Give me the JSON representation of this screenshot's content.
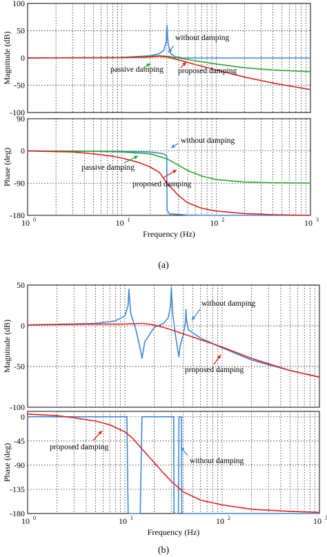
{
  "captions": [
    "(a)",
    "(b)"
  ],
  "colors": {
    "without_damping": "#3b88d6",
    "passive_damping": "#2aa52a",
    "proposed_damping": "#e0201c"
  },
  "chart_data": [
    {
      "id": "a-magnitude",
      "type": "line",
      "x_scale": "log",
      "xlim": [
        1,
        1000
      ],
      "ylabel": "Magnitude (dB)",
      "ylim": [
        -100,
        100
      ],
      "yticks": [
        100,
        50,
        0,
        -50,
        -100
      ],
      "grid": true,
      "series": [
        {
          "name": "without damping",
          "x": [
            1,
            10,
            20,
            25,
            28,
            29.5,
            30,
            31,
            33,
            37,
            45,
            60,
            100,
            200,
            1000
          ],
          "values": [
            0,
            1,
            4,
            8,
            15,
            30,
            60,
            25,
            8,
            2,
            0,
            0,
            0,
            0,
            0
          ]
        },
        {
          "name": "passive damping",
          "x": [
            1,
            10,
            20,
            25,
            30,
            40,
            60,
            100,
            200,
            400,
            1000
          ],
          "values": [
            0,
            1,
            3,
            4,
            3,
            0,
            -5,
            -11,
            -18,
            -22,
            -25
          ]
        },
        {
          "name": "proposed damping",
          "x": [
            1,
            10,
            20,
            25,
            30,
            35,
            45,
            60,
            100,
            200,
            400,
            1000
          ],
          "values": [
            0,
            0.5,
            2,
            3,
            2,
            -1,
            -6,
            -12,
            -22,
            -35,
            -46,
            -58
          ]
        }
      ],
      "annotations": [
        "without damping",
        "passive damping",
        "proposed damping"
      ]
    },
    {
      "id": "a-phase",
      "type": "line",
      "x_scale": "log",
      "xlim": [
        1,
        1000
      ],
      "xlabel": "Frequency (Hz)",
      "ylabel": "Phase (deg)",
      "ylim": [
        -180,
        90
      ],
      "yticks": [
        90,
        0,
        -90,
        -180
      ],
      "xticks": [
        {
          "base": "10",
          "exp": "0"
        },
        {
          "base": "10",
          "exp": "1"
        },
        {
          "base": "10",
          "exp": "2"
        },
        {
          "base": "10",
          "exp": "3"
        }
      ],
      "grid": true,
      "series": [
        {
          "name": "without damping",
          "x": [
            1,
            10,
            20,
            28,
            29.9,
            30.1,
            32,
            50,
            100,
            1000
          ],
          "values": [
            0,
            -1,
            -3,
            -8,
            -15,
            -165,
            -176,
            -179,
            -180,
            -180
          ]
        },
        {
          "name": "passive damping",
          "x": [
            1,
            5,
            10,
            20,
            30,
            40,
            50,
            70,
            100,
            200,
            400,
            1000
          ],
          "values": [
            0,
            -1,
            -3,
            -8,
            -22,
            -40,
            -55,
            -70,
            -80,
            -87,
            -89,
            -90
          ]
        },
        {
          "name": "proposed damping",
          "x": [
            1,
            3,
            5,
            8,
            10,
            15,
            20,
            25,
            30,
            40,
            50,
            70,
            100,
            200,
            400,
            1000
          ],
          "values": [
            0,
            -3,
            -8,
            -15,
            -20,
            -32,
            -45,
            -60,
            -90,
            -125,
            -145,
            -160,
            -168,
            -175,
            -178,
            -180
          ]
        }
      ],
      "annotations": [
        "without damping",
        "passive damping",
        "proposed damping"
      ]
    },
    {
      "id": "b-magnitude",
      "type": "line",
      "x_scale": "log",
      "xlim": [
        1,
        1000
      ],
      "ylabel": "Magnitude (dB)",
      "ylim": [
        -100,
        50
      ],
      "yticks": [
        50,
        0,
        -50,
        -100
      ],
      "grid": true,
      "series": [
        {
          "name": "without damping",
          "x": [
            1,
            5,
            8,
            10,
            10.8,
            11,
            11.5,
            13,
            14.5,
            15,
            16,
            20,
            25,
            28,
            29.5,
            30,
            31,
            33,
            35,
            36,
            37,
            40,
            42,
            42.5,
            43,
            45,
            60,
            100,
            200,
            500,
            1000
          ],
          "values": [
            1,
            3,
            6,
            12,
            25,
            45,
            15,
            -5,
            -30,
            -40,
            -20,
            -2,
            3,
            10,
            25,
            47,
            15,
            -10,
            -30,
            -38,
            -25,
            -10,
            5,
            20,
            8,
            -5,
            -15,
            -27,
            -42,
            -55,
            -63
          ]
        },
        {
          "name": "proposed damping",
          "x": [
            1,
            5,
            10,
            15,
            20,
            25,
            30,
            40,
            60,
            100,
            200,
            500,
            1000
          ],
          "values": [
            1,
            2,
            2,
            3,
            1,
            -2,
            -5,
            -10,
            -17,
            -26,
            -40,
            -55,
            -63
          ]
        }
      ],
      "annotations": [
        "without damping",
        "proposed damping"
      ]
    },
    {
      "id": "b-phase",
      "type": "line",
      "x_scale": "log",
      "xlim": [
        1,
        1000
      ],
      "xlabel": "Frequency (Hz)",
      "ylabel": "Phase (deg)",
      "ylim": [
        -180,
        10
      ],
      "yticks": [
        0,
        -45,
        -90,
        -135,
        -180
      ],
      "xticks": [
        {
          "base": "10",
          "exp": "0"
        },
        {
          "base": "10",
          "exp": "1"
        },
        {
          "base": "10",
          "exp": "2"
        },
        {
          "base": "10",
          "exp": "3"
        }
      ],
      "grid": true,
      "series": [
        {
          "name": "without damping",
          "x": [
            1,
            10.4,
            10.5,
            10.8,
            11,
            14.2,
            14.4,
            15,
            15.3,
            31.5,
            31.8,
            32,
            33,
            35.2,
            35.5,
            36,
            36.2,
            38,
            38.3,
            38.5,
            40,
            50,
            100,
            1000
          ],
          "values": [
            0,
            0,
            -2,
            -178,
            -180,
            -180,
            -178,
            -2,
            0,
            0,
            -2,
            -178,
            -180,
            -180,
            -178,
            -2,
            0,
            0,
            -2,
            -178,
            -180,
            -180,
            -180,
            -180
          ]
        },
        {
          "name": "proposed damping",
          "x": [
            1,
            2,
            3,
            5,
            7,
            10,
            12,
            15,
            20,
            25,
            30,
            40,
            60,
            100,
            200,
            500,
            1000
          ],
          "values": [
            5,
            2,
            -2,
            -8,
            -15,
            -28,
            -40,
            -60,
            -85,
            -105,
            -120,
            -140,
            -155,
            -164,
            -172,
            -176,
            -178
          ]
        }
      ],
      "annotations": [
        "without damping",
        "proposed damping"
      ]
    }
  ]
}
